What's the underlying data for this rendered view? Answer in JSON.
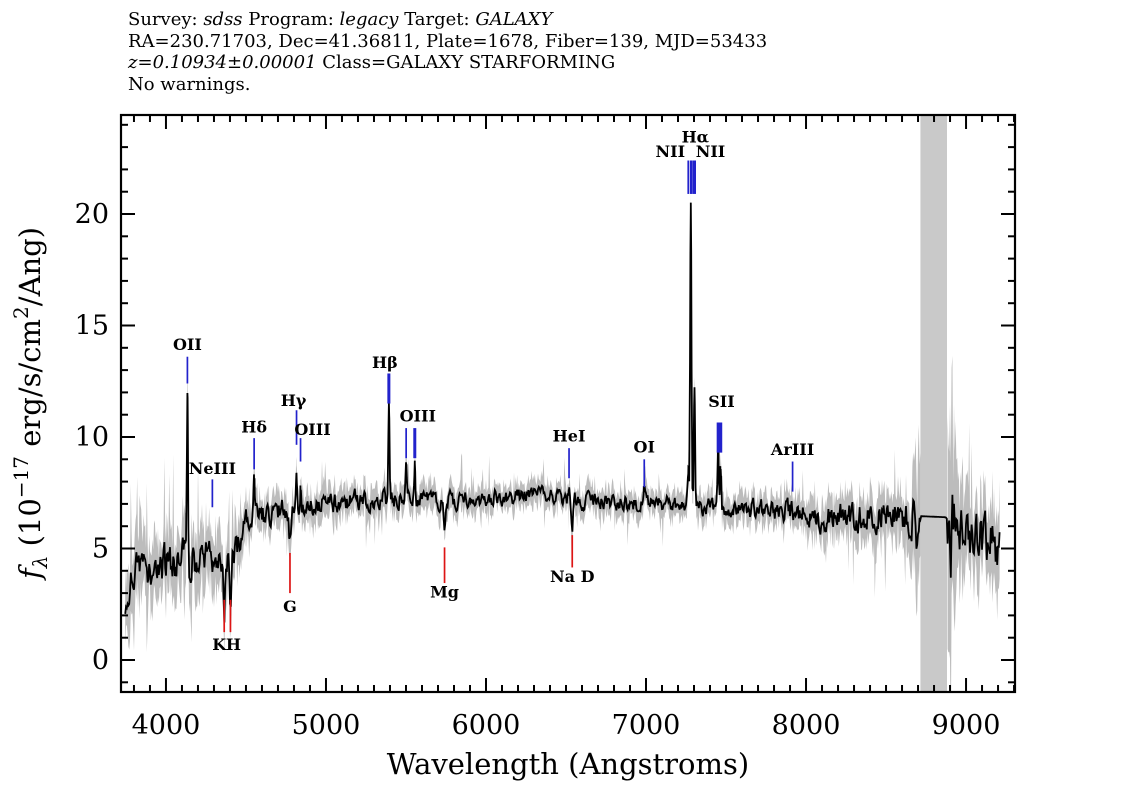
{
  "header": {
    "lines": [
      {
        "parts": [
          {
            "text": "Survey: ",
            "italic": false
          },
          {
            "text": "sdss",
            "italic": true
          },
          {
            "text": " Program: ",
            "italic": false
          },
          {
            "text": "legacy",
            "italic": true
          },
          {
            "text": " Target: ",
            "italic": false
          },
          {
            "text": "GALAXY",
            "italic": true
          }
        ]
      },
      {
        "parts": [
          {
            "text": "RA=230.71703, Dec=41.36811, Plate=1678, Fiber=139, MJD=53433",
            "italic": false
          }
        ]
      },
      {
        "parts": [
          {
            "text": "z=0.10934±0.00001",
            "italic": true
          },
          {
            "text": " Class=GALAXY STARFORMING",
            "italic": false
          }
        ]
      },
      {
        "parts": [
          {
            "text": "No warnings.",
            "italic": false
          }
        ]
      }
    ]
  },
  "chart_data": {
    "type": "line",
    "xlabel": "Wavelength (Angstroms)",
    "ylabel": "f_lambda (10^-17 erg/s/cm^2/Ang)",
    "ylabel_parts": [
      {
        "text": "f",
        "style": "italic"
      },
      {
        "text": "λ",
        "style": "sub"
      },
      {
        "text": " (10",
        "style": "normal"
      },
      {
        "text": "−17",
        "style": "sup"
      },
      {
        "text": " erg/s/cm",
        "style": "normal"
      },
      {
        "text": "2",
        "style": "sup"
      },
      {
        "text": "/Ang)",
        "style": "normal"
      }
    ],
    "xlim": [
      3719,
      9306
    ],
    "ylim": [
      -1.435,
      24.44
    ],
    "x_major_ticks": [
      4000,
      5000,
      6000,
      7000,
      8000,
      9000
    ],
    "x_tick_labels": [
      "4000",
      "5000",
      "6000",
      "7000",
      "8000",
      "9000"
    ],
    "x_minor_step": 100,
    "y_major_ticks": [
      0,
      5,
      10,
      15,
      20
    ],
    "y_tick_labels": [
      "0",
      "5",
      "10",
      "15",
      "20"
    ],
    "y_minor_step": 1,
    "grid": false,
    "legend": null,
    "colors": {
      "spectrum": "#000000",
      "error_envelope": "#bcbcbc",
      "masked_band": "#c9c9c9",
      "emission_tick": "#2222cc",
      "absorption_tick": "#dd1515",
      "label_text": "#000000"
    },
    "masked_band": {
      "x0": 8715,
      "x1": 8881
    },
    "spectrum_range": [
      3745,
      9212
    ],
    "continuum": [
      [
        3745,
        2.9
      ],
      [
        3800,
        3.6
      ],
      [
        3870,
        4.1
      ],
      [
        3950,
        4.0
      ],
      [
        4050,
        4.35
      ],
      [
        4150,
        4.5
      ],
      [
        4250,
        4.5
      ],
      [
        4330,
        4.2
      ],
      [
        4400,
        4.3
      ],
      [
        4450,
        5.0
      ],
      [
        4490,
        6.2
      ],
      [
        4550,
        6.4
      ],
      [
        4620,
        6.5
      ],
      [
        4700,
        6.6
      ],
      [
        4800,
        6.9
      ],
      [
        4900,
        7.0
      ],
      [
        5000,
        6.95
      ],
      [
        5100,
        7.1
      ],
      [
        5200,
        7.15
      ],
      [
        5300,
        7.2
      ],
      [
        5400,
        7.25
      ],
      [
        5500,
        7.3
      ],
      [
        5600,
        7.2
      ],
      [
        5700,
        7.1
      ],
      [
        5800,
        7.15
      ],
      [
        5900,
        7.2
      ],
      [
        6000,
        7.25
      ],
      [
        6100,
        7.3
      ],
      [
        6200,
        7.35
      ],
      [
        6300,
        7.35
      ],
      [
        6400,
        7.3
      ],
      [
        6500,
        7.2
      ],
      [
        6600,
        7.15
      ],
      [
        6700,
        7.1
      ],
      [
        6800,
        7.05
      ],
      [
        6900,
        7.0
      ],
      [
        7000,
        7.0
      ],
      [
        7100,
        7.0
      ],
      [
        7200,
        7.0
      ],
      [
        7300,
        6.95
      ],
      [
        7400,
        6.85
      ],
      [
        7500,
        6.8
      ],
      [
        7600,
        6.8
      ],
      [
        7700,
        6.75
      ],
      [
        7800,
        6.7
      ],
      [
        7900,
        6.65
      ],
      [
        8000,
        6.55
      ],
      [
        8100,
        6.4
      ],
      [
        8200,
        6.45
      ],
      [
        8300,
        6.5
      ],
      [
        8400,
        6.45
      ],
      [
        8500,
        6.4
      ],
      [
        8600,
        6.45
      ],
      [
        8715,
        6.45
      ],
      [
        8881,
        6.4
      ],
      [
        8910,
        6.1
      ],
      [
        8950,
        5.6
      ],
      [
        9000,
        5.45
      ],
      [
        9060,
        5.35
      ],
      [
        9120,
        5.3
      ],
      [
        9170,
        5.2
      ],
      [
        9212,
        4.9
      ]
    ],
    "noise_sigma": [
      [
        3745,
        1.4
      ],
      [
        3900,
        1.3
      ],
      [
        4100,
        1.25
      ],
      [
        4300,
        1.2
      ],
      [
        4420,
        1.0
      ],
      [
        4520,
        0.8
      ],
      [
        4700,
        0.7
      ],
      [
        4900,
        0.65
      ],
      [
        5200,
        0.6
      ],
      [
        5600,
        0.55
      ],
      [
        6000,
        0.5
      ],
      [
        6400,
        0.5
      ],
      [
        6800,
        0.5
      ],
      [
        7200,
        0.5
      ],
      [
        7600,
        0.55
      ],
      [
        7900,
        0.65
      ],
      [
        8100,
        0.8
      ],
      [
        8300,
        0.9
      ],
      [
        8500,
        0.95
      ],
      [
        8715,
        1.05
      ],
      [
        8881,
        1.3
      ],
      [
        8960,
        1.6
      ],
      [
        9100,
        1.5
      ],
      [
        9212,
        1.6
      ]
    ],
    "emission_lines": [
      {
        "name": "OII",
        "wavelength": 4134,
        "peak_flux": 11.8,
        "sigma": 3.5
      },
      {
        "name": "Hdelta",
        "wavelength": 4551,
        "peak_flux": 8.3,
        "sigma": 3.5
      },
      {
        "name": "Hgamma",
        "wavelength": 4816,
        "peak_flux": 8.1,
        "sigma": 3.5
      },
      {
        "name": "OIII",
        "wavelength": 4841,
        "peak_flux": 7.8,
        "sigma": 3.5
      },
      {
        "name": "Hbeta",
        "wavelength": 5393,
        "peak_flux": 11.4,
        "sigma": 3.5
      },
      {
        "name": "OIII",
        "wavelength": 5501,
        "peak_flux": 8.8,
        "sigma": 3.5
      },
      {
        "name": "OIII",
        "wavelength": 5555,
        "peak_flux": 8.7,
        "sigma": 3.5
      },
      {
        "name": "HeI",
        "wavelength": 6519,
        "peak_flux": 7.9,
        "sigma": 3.5
      },
      {
        "name": "OI",
        "wavelength": 6989,
        "peak_flux": 7.6,
        "sigma": 3.5
      },
      {
        "name": "NII",
        "wavelength": 7264,
        "peak_flux": 8.6,
        "sigma": 4
      },
      {
        "name": "Halpha",
        "wavelength": 7280,
        "peak_flux": 20.6,
        "sigma": 4
      },
      {
        "name": "NII",
        "wavelength": 7303,
        "peak_flux": 11.9,
        "sigma": 4
      },
      {
        "name": "SII",
        "wavelength": 7451,
        "peak_flux": 9.6,
        "sigma": 3.5
      },
      {
        "name": "SII",
        "wavelength": 7467,
        "peak_flux": 8.9,
        "sigma": 3.5
      }
    ],
    "absorption_lines": [
      {
        "name": "K",
        "wavelength": 4364,
        "depth": 2.0,
        "sigma": 5
      },
      {
        "name": "H",
        "wavelength": 4403,
        "depth": 1.8,
        "sigma": 5
      },
      {
        "name": "G",
        "wavelength": 4775,
        "depth": 1.4,
        "sigma": 7
      },
      {
        "name": "Mg",
        "wavelength": 5741,
        "depth": 1.1,
        "sigma": 8
      },
      {
        "name": "Na D",
        "wavelength": 6539,
        "depth": 1.0,
        "sigma": 5
      },
      {
        "name": "sky-residual",
        "wavelength": 8905,
        "depth": 1.6,
        "sigma": 10
      }
    ],
    "line_labels": [
      {
        "text": "OII",
        "wavelength": 4134,
        "kind": "emission",
        "label_flux": 13.9,
        "tick": [
          13.6,
          12.4
        ],
        "dx": 0,
        "bold": false
      },
      {
        "text": "NeIII",
        "wavelength": 4290,
        "kind": "emission",
        "label_flux": 8.35,
        "tick": [
          8.1,
          6.85
        ],
        "dx": 0,
        "bold": false
      },
      {
        "text": "K",
        "wavelength": 4364,
        "kind": "absorption",
        "label_flux": 0.45,
        "tick": [
          2.7,
          1.25
        ],
        "dx": -5,
        "bold": false
      },
      {
        "text": "H",
        "wavelength": 4403,
        "kind": "absorption",
        "label_flux": 0.45,
        "tick": [
          2.7,
          1.25
        ],
        "dx": 3,
        "bold": false
      },
      {
        "text": "Hδ",
        "wavelength": 4551,
        "kind": "emission",
        "label_flux": 10.2,
        "tick": [
          9.95,
          8.55
        ],
        "dx": 0,
        "bold": false
      },
      {
        "text": "G",
        "wavelength": 4775,
        "kind": "absorption",
        "label_flux": 2.15,
        "tick": [
          4.8,
          3.0
        ],
        "dx": 0,
        "bold": false
      },
      {
        "text": "Hγ",
        "wavelength": 4816,
        "kind": "emission",
        "label_flux": 11.4,
        "tick": [
          11.2,
          9.65
        ],
        "dx": -3,
        "bold": false
      },
      {
        "text": "OIII",
        "wavelength": 4841,
        "kind": "emission",
        "label_flux": 10.1,
        "tick": [
          9.95,
          8.9
        ],
        "dx": 12,
        "bold": false
      },
      {
        "text": "Hβ",
        "wavelength": 5393,
        "kind": "emission",
        "label_flux": 13.1,
        "tick": [
          12.85,
          11.5
        ],
        "dx": -4,
        "bold": true
      },
      {
        "text": "",
        "wavelength": 5501,
        "kind": "emission",
        "label_flux": null,
        "tick": [
          10.4,
          9.05
        ],
        "dx": 0,
        "bold": false
      },
      {
        "text": "OIII",
        "wavelength": 5555,
        "kind": "emission",
        "label_flux": 10.7,
        "tick": [
          10.4,
          9.05
        ],
        "dx": 3,
        "bold": true
      },
      {
        "text": "Mg",
        "wavelength": 5741,
        "kind": "absorption",
        "label_flux": 2.8,
        "tick": [
          5.05,
          3.45
        ],
        "dx": 0,
        "bold": false
      },
      {
        "text": "HeI",
        "wavelength": 6519,
        "kind": "emission",
        "label_flux": 9.8,
        "tick": [
          9.5,
          8.15
        ],
        "dx": 0,
        "bold": false
      },
      {
        "text": "Na D",
        "wavelength": 6539,
        "kind": "absorption",
        "label_flux": 3.5,
        "tick": [
          5.6,
          4.15
        ],
        "dx": 0,
        "bold": false
      },
      {
        "text": "OI",
        "wavelength": 6989,
        "kind": "emission",
        "label_flux": 9.3,
        "tick": [
          9.0,
          7.75
        ],
        "dx": 0,
        "bold": false
      },
      {
        "text": "NII",
        "wavelength": 7264,
        "kind": "emission",
        "label_flux": 22.55,
        "tick": [
          22.4,
          20.9
        ],
        "dx": -18,
        "bold": false
      },
      {
        "text": "Hα",
        "wavelength": 7283,
        "kind": "emission",
        "label_flux": 23.2,
        "tick": [
          22.4,
          20.9
        ],
        "dx": 4,
        "bold": true
      },
      {
        "text": "NII",
        "wavelength": 7303,
        "kind": "emission",
        "label_flux": 22.55,
        "tick": [
          22.4,
          20.9
        ],
        "dx": 16,
        "bold": true
      },
      {
        "text": "SII",
        "wavelength": 7459,
        "kind": "emission",
        "label_flux": 11.35,
        "tick": null,
        "dx": 2,
        "bold": false
      },
      {
        "text": "",
        "wavelength": 7451,
        "kind": "emission",
        "label_flux": null,
        "tick": [
          10.65,
          9.3
        ],
        "dx": 0,
        "bold": true
      },
      {
        "text": "",
        "wavelength": 7467,
        "kind": "emission",
        "label_flux": null,
        "tick": [
          10.65,
          9.3
        ],
        "dx": 0,
        "bold": true
      },
      {
        "text": "ArIII",
        "wavelength": 7916,
        "kind": "emission",
        "label_flux": 9.2,
        "tick": [
          8.9,
          7.55
        ],
        "dx": 0,
        "bold": false
      }
    ]
  }
}
